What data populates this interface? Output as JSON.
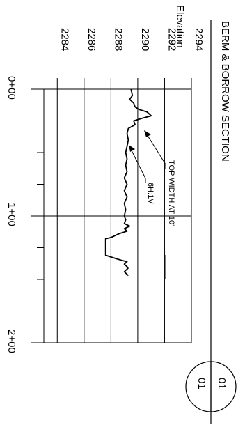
{
  "title": "BERM & BORROW SECTION",
  "sheet_ref": {
    "top": "01",
    "bottom": "01"
  },
  "axes": {
    "y_label": "Elevation",
    "y_ticks": [
      "2284",
      "2286",
      "2288",
      "2290",
      "2292",
      "2294"
    ],
    "x_ticks_major": [
      "0+00",
      "1+00",
      "2+00"
    ]
  },
  "annotations": {
    "top_width": "TOP WIDTH  AT 10'",
    "slope": "6H:1V"
  },
  "chart_data": {
    "type": "line",
    "x_unit": "station (ft)",
    "y_unit": "elevation (ft)",
    "xlim": [
      0,
      200
    ],
    "ylim": [
      2283,
      2294
    ],
    "grid": true,
    "series": [
      {
        "values_xy": [
          [
            0,
            2289.5
          ],
          [
            5,
            2289.6
          ],
          [
            8,
            2289.4
          ],
          [
            11,
            2289.7
          ],
          [
            14,
            2289.8
          ],
          [
            16,
            2290.1
          ],
          [
            18,
            2290.7
          ],
          [
            21,
            2291.0
          ],
          [
            23,
            2290.3
          ],
          [
            25,
            2289.7
          ],
          [
            28,
            2289.8
          ],
          [
            31,
            2289.3
          ],
          [
            35,
            2289.2
          ],
          [
            40,
            2289.3
          ],
          [
            45,
            2289.2
          ],
          [
            50,
            2289.1
          ],
          [
            55,
            2289.2
          ],
          [
            60,
            2289.1
          ],
          [
            65,
            2289.2
          ],
          [
            70,
            2289.0
          ],
          [
            75,
            2289.2
          ],
          [
            80,
            2289.0
          ],
          [
            85,
            2289.2
          ],
          [
            90,
            2289.0
          ],
          [
            95,
            2289.1
          ],
          [
            100,
            2289.0
          ],
          [
            103,
            2289.1
          ],
          [
            106,
            2289.0
          ],
          [
            108,
            2289.4
          ],
          [
            110,
            2289.0
          ],
          [
            112,
            2289.2
          ],
          [
            114,
            2288.6
          ],
          [
            117,
            2288.0
          ],
          [
            118,
            2287.6
          ],
          [
            131,
            2287.6
          ],
          [
            133,
            2288.2
          ],
          [
            135,
            2288.8
          ],
          [
            136,
            2289.2
          ],
          [
            138,
            2289.0
          ],
          [
            141,
            2289.3
          ],
          [
            144,
            2289.0
          ],
          [
            147,
            2289.3
          ]
        ]
      }
    ]
  }
}
